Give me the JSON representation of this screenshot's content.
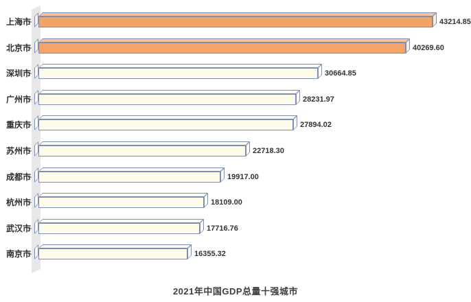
{
  "title": "2021年中国GDP总量十强城市",
  "chart_data": {
    "type": "bar",
    "orientation": "horizontal",
    "title": "2021年中国GDP总量十强城市",
    "xlabel": "",
    "ylabel": "",
    "xlim": [
      0,
      45000
    ],
    "grid": false,
    "legend": "none",
    "categories": [
      "上海市",
      "北京市",
      "深圳市",
      "广州市",
      "重庆市",
      "苏州市",
      "成都市",
      "杭州市",
      "武汉市",
      "南京市"
    ],
    "values": [
      43214.85,
      40269.6,
      30664.85,
      28231.97,
      27894.02,
      22718.3,
      19917.0,
      18109.0,
      17716.76,
      16355.32
    ],
    "value_labels": [
      "43214.85",
      "40269.60",
      "30664.85",
      "28231.97",
      "27894.02",
      "22718.30",
      "19917.00",
      "18109.00",
      "17716.76",
      "16355.32"
    ],
    "highlight_indices": [
      0,
      1
    ],
    "colors": {
      "highlight_front": "#F4A469",
      "highlight_top": "#F8C399",
      "highlight_cap": "#FBEFE3",
      "normal_front": "#FDFBE9",
      "normal_top": "#FBFAF1",
      "normal_cap": "#FDFCF6",
      "bar_border": "#7E8DB0",
      "wall": "#E7E7EA",
      "tick": "#A9A9A9",
      "category_text": "#2E2E2E",
      "value_text": "#333333",
      "title_text": "#3F3F3F",
      "background": "#FFFFFF"
    }
  }
}
